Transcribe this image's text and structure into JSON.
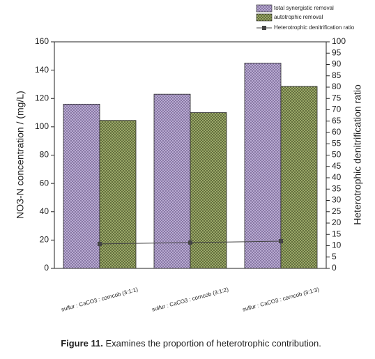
{
  "chart_data": {
    "type": "bar",
    "categories": [
      "sulfur : CaCO3 : corncob (3:1:1)",
      "sulfur : CaCO3 : corncob (3:1:2)",
      "sulfur : CaCO3 : corncob (3:1:3)"
    ],
    "series": [
      {
        "name": "total synergistic removal",
        "color": "#bfb0d8",
        "values": [
          116,
          123,
          145
        ]
      },
      {
        "name": "autotrophic removal",
        "color": "#9aa868",
        "values": [
          104.5,
          110,
          128.5
        ]
      },
      {
        "name": "Heterotrophic denitrification ratio",
        "color": "#444444",
        "type": "line",
        "axis": "y2",
        "values": [
          10.8,
          11.4,
          12
        ]
      }
    ],
    "ylabel": "NO3-N concentration / (mg/L)",
    "y2label": "Heterotrophic denitrification ratio",
    "ylim": [
      0,
      160
    ],
    "yticks": [
      0,
      20,
      40,
      60,
      80,
      100,
      120,
      140,
      160
    ],
    "y2lim": [
      0,
      100
    ],
    "y2ticks": [
      0,
      5,
      10,
      15,
      20,
      25,
      30,
      35,
      40,
      45,
      50,
      55,
      60,
      65,
      70,
      75,
      80,
      85,
      90,
      95,
      100
    ],
    "legend": "top right",
    "caption_label": "Figure 11.",
    "caption": "Examines the proportion of heterotrophic contribution."
  }
}
